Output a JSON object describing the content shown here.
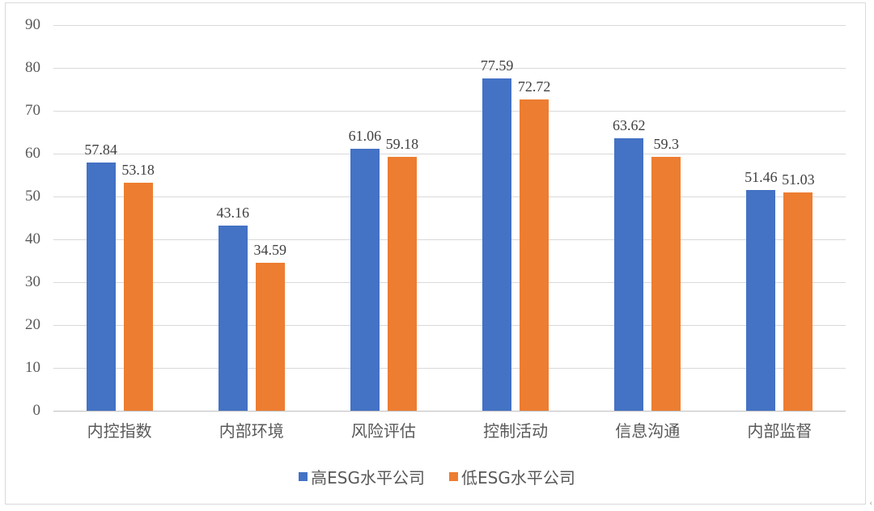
{
  "chart_data": {
    "type": "bar",
    "title": "",
    "xlabel": "",
    "ylabel": "",
    "ylim": [
      0,
      90
    ],
    "yticks": [
      0,
      10,
      20,
      30,
      40,
      50,
      60,
      70,
      80,
      90
    ],
    "grid": true,
    "legend_position": "bottom",
    "categories": [
      "内控指数",
      "内部环境",
      "风险评估",
      "控制活动",
      "信息沟通",
      "内部监督"
    ],
    "series": [
      {
        "name": "高ESG水平公司",
        "color": "#4472c4",
        "values": [
          57.84,
          43.16,
          61.06,
          77.59,
          63.62,
          51.46
        ]
      },
      {
        "name": "低ESG水平公司",
        "color": "#ed7d31",
        "values": [
          53.18,
          34.59,
          59.18,
          72.72,
          59.3,
          51.03
        ]
      }
    ],
    "data_labels": {
      "high": [
        "57.84",
        "43.16",
        "61.06",
        "77.59",
        "63.62",
        "51.46"
      ],
      "low": [
        "53.18",
        "34.59",
        "59.18",
        "72.72",
        "59.3",
        "51.03"
      ]
    }
  },
  "ui": {
    "corner_glyph": "‹"
  }
}
